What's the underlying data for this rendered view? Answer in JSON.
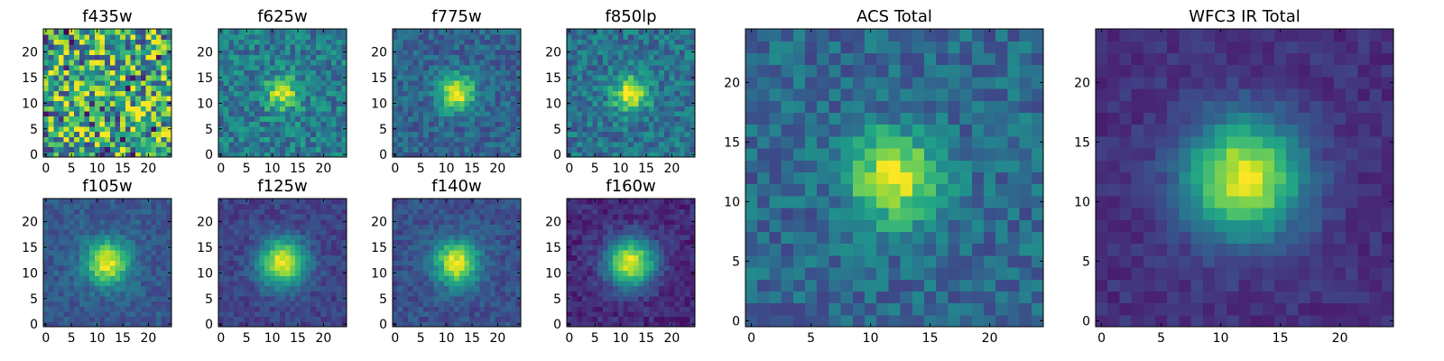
{
  "figure_title": "",
  "chart_data": [
    {
      "id": "f435w",
      "type": "heatmap",
      "title": "f435w",
      "x": "pixel",
      "y": "pixel",
      "grid_size": [
        25,
        25
      ],
      "xlim": [
        0,
        24
      ],
      "ylim": [
        0,
        24
      ],
      "xticks": [
        0,
        5,
        10,
        15,
        20
      ],
      "yticks": [
        0,
        5,
        10,
        15,
        20
      ],
      "colormap": "viridis",
      "source_center": null,
      "noise": 0.42,
      "baseline": 0.62,
      "seed": 11
    },
    {
      "id": "f625w",
      "type": "heatmap",
      "title": "f625w",
      "x": "pixel",
      "y": "pixel",
      "grid_size": [
        25,
        25
      ],
      "xlim": [
        0,
        24
      ],
      "ylim": [
        0,
        24
      ],
      "xticks": [
        0,
        5,
        10,
        15,
        20
      ],
      "yticks": [
        0,
        5,
        10,
        15,
        20
      ],
      "colormap": "viridis",
      "source_center": [
        12,
        12
      ],
      "sigma": 2.2,
      "peak": 0.95,
      "baseline": 0.42,
      "noise": 0.18,
      "seed": 23
    },
    {
      "id": "f775w",
      "type": "heatmap",
      "title": "f775w",
      "x": "pixel",
      "y": "pixel",
      "grid_size": [
        25,
        25
      ],
      "xlim": [
        0,
        24
      ],
      "ylim": [
        0,
        24
      ],
      "xticks": [
        0,
        5,
        10,
        15,
        20
      ],
      "yticks": [
        0,
        5,
        10,
        15,
        20
      ],
      "colormap": "viridis",
      "source_center": [
        12,
        12
      ],
      "sigma": 2.5,
      "peak": 0.98,
      "baseline": 0.32,
      "noise": 0.13,
      "seed": 37
    },
    {
      "id": "f850lp",
      "type": "heatmap",
      "title": "f850lp",
      "x": "pixel",
      "y": "pixel",
      "grid_size": [
        25,
        25
      ],
      "xlim": [
        0,
        24
      ],
      "ylim": [
        0,
        24
      ],
      "xticks": [
        0,
        5,
        10,
        15,
        20
      ],
      "yticks": [
        0,
        5,
        10,
        15,
        20
      ],
      "colormap": "viridis",
      "source_center": [
        12,
        12
      ],
      "sigma": 2.4,
      "peak": 0.98,
      "baseline": 0.38,
      "noise": 0.16,
      "seed": 41
    },
    {
      "id": "f105w",
      "type": "heatmap",
      "title": "f105w",
      "x": "pixel",
      "y": "pixel",
      "grid_size": [
        25,
        25
      ],
      "xlim": [
        0,
        24
      ],
      "ylim": [
        0,
        24
      ],
      "xticks": [
        0,
        5,
        10,
        15,
        20
      ],
      "yticks": [
        0,
        5,
        10,
        15,
        20
      ],
      "colormap": "viridis",
      "source_center": [
        12,
        12
      ],
      "sigma": 3.0,
      "peak": 0.98,
      "baseline": 0.28,
      "noise": 0.09,
      "seed": 53
    },
    {
      "id": "f125w",
      "type": "heatmap",
      "title": "f125w",
      "x": "pixel",
      "y": "pixel",
      "grid_size": [
        25,
        25
      ],
      "xlim": [
        0,
        24
      ],
      "ylim": [
        0,
        24
      ],
      "xticks": [
        0,
        5,
        10,
        15,
        20
      ],
      "yticks": [
        0,
        5,
        10,
        15,
        20
      ],
      "colormap": "viridis",
      "source_center": [
        12,
        12
      ],
      "sigma": 3.2,
      "peak": 0.98,
      "baseline": 0.2,
      "noise": 0.08,
      "seed": 61
    },
    {
      "id": "f140w",
      "type": "heatmap",
      "title": "f140w",
      "x": "pixel",
      "y": "pixel",
      "grid_size": [
        25,
        25
      ],
      "xlim": [
        0,
        24
      ],
      "ylim": [
        0,
        24
      ],
      "xticks": [
        0,
        5,
        10,
        15,
        20
      ],
      "yticks": [
        0,
        5,
        10,
        15,
        20
      ],
      "colormap": "viridis",
      "source_center": [
        12,
        12
      ],
      "sigma": 3.0,
      "peak": 0.98,
      "baseline": 0.25,
      "noise": 0.09,
      "seed": 71
    },
    {
      "id": "f160w",
      "type": "heatmap",
      "title": "f160w",
      "x": "pixel",
      "y": "pixel",
      "grid_size": [
        25,
        25
      ],
      "xlim": [
        0,
        24
      ],
      "ylim": [
        0,
        24
      ],
      "xticks": [
        0,
        5,
        10,
        15,
        20
      ],
      "yticks": [
        0,
        5,
        10,
        15,
        20
      ],
      "colormap": "viridis",
      "source_center": [
        12,
        12
      ],
      "sigma": 3.3,
      "peak": 0.98,
      "baseline": 0.12,
      "noise": 0.08,
      "seed": 83
    },
    {
      "id": "acs-total",
      "type": "heatmap",
      "title": "ACS Total",
      "x": "pixel",
      "y": "pixel",
      "grid_size": [
        25,
        25
      ],
      "xlim": [
        0,
        24
      ],
      "ylim": [
        0,
        24
      ],
      "xticks": [
        0,
        5,
        10,
        15,
        20
      ],
      "yticks": [
        0,
        5,
        10,
        15,
        20
      ],
      "colormap": "viridis",
      "source_center": [
        12,
        12
      ],
      "sigma": 2.6,
      "peak": 0.98,
      "baseline": 0.34,
      "noise": 0.14,
      "seed": 97
    },
    {
      "id": "wfc3-ir-total",
      "type": "heatmap",
      "title": "WFC3 IR Total",
      "x": "pixel",
      "y": "pixel",
      "grid_size": [
        25,
        25
      ],
      "xlim": [
        0,
        24
      ],
      "ylim": [
        0,
        24
      ],
      "xticks": [
        0,
        5,
        10,
        15,
        20
      ],
      "yticks": [
        0,
        5,
        10,
        15,
        20
      ],
      "colormap": "viridis",
      "source_center": [
        12,
        12
      ],
      "sigma": 3.4,
      "peak": 0.98,
      "baseline": 0.14,
      "noise": 0.06,
      "seed": 101
    }
  ]
}
